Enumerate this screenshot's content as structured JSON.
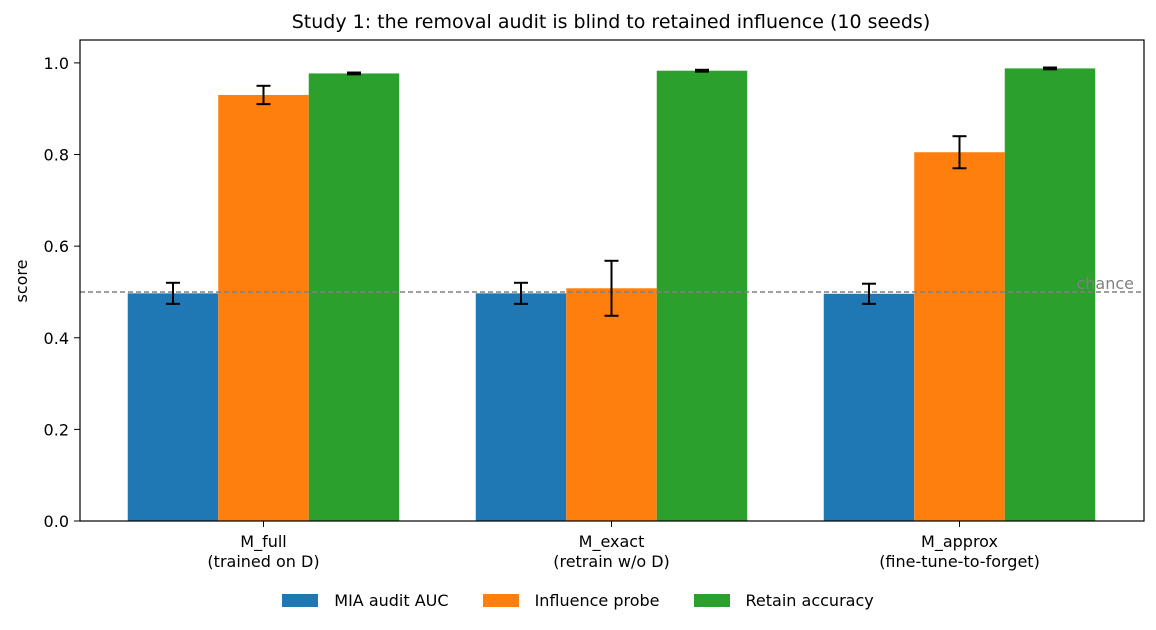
{
  "chart_data": {
    "type": "bar",
    "title": "Study 1: the removal audit is blind to retained influence (10 seeds)",
    "xlabel": "",
    "ylabel": "score",
    "ylim": [
      0,
      1.05
    ],
    "yticks": [
      "0.0",
      "0.2",
      "0.4",
      "0.6",
      "0.8",
      "1.0"
    ],
    "categories": [
      [
        "M_full",
        "(trained on D)"
      ],
      [
        "M_exact",
        "(retrain w/o D)"
      ],
      [
        "M_approx",
        "(fine-tune-to-forget)"
      ]
    ],
    "series": [
      {
        "name": "MIA audit AUC",
        "color": "#1f77b4",
        "values": [
          0.497,
          0.497,
          0.496
        ],
        "errors": [
          0.023,
          0.023,
          0.022
        ]
      },
      {
        "name": "Influence probe",
        "color": "#ff7f0e",
        "values": [
          0.93,
          0.508,
          0.805
        ],
        "errors": [
          0.02,
          0.06,
          0.035
        ]
      },
      {
        "name": "Retain accuracy",
        "color": "#2ca02c",
        "values": [
          0.977,
          0.983,
          0.988
        ],
        "errors": [
          0.002,
          0.002,
          0.002
        ]
      }
    ],
    "reference_line": {
      "value": 0.5,
      "label": "chance",
      "color": "#808080"
    },
    "legend_position": "bottom-center",
    "grid": false
  }
}
